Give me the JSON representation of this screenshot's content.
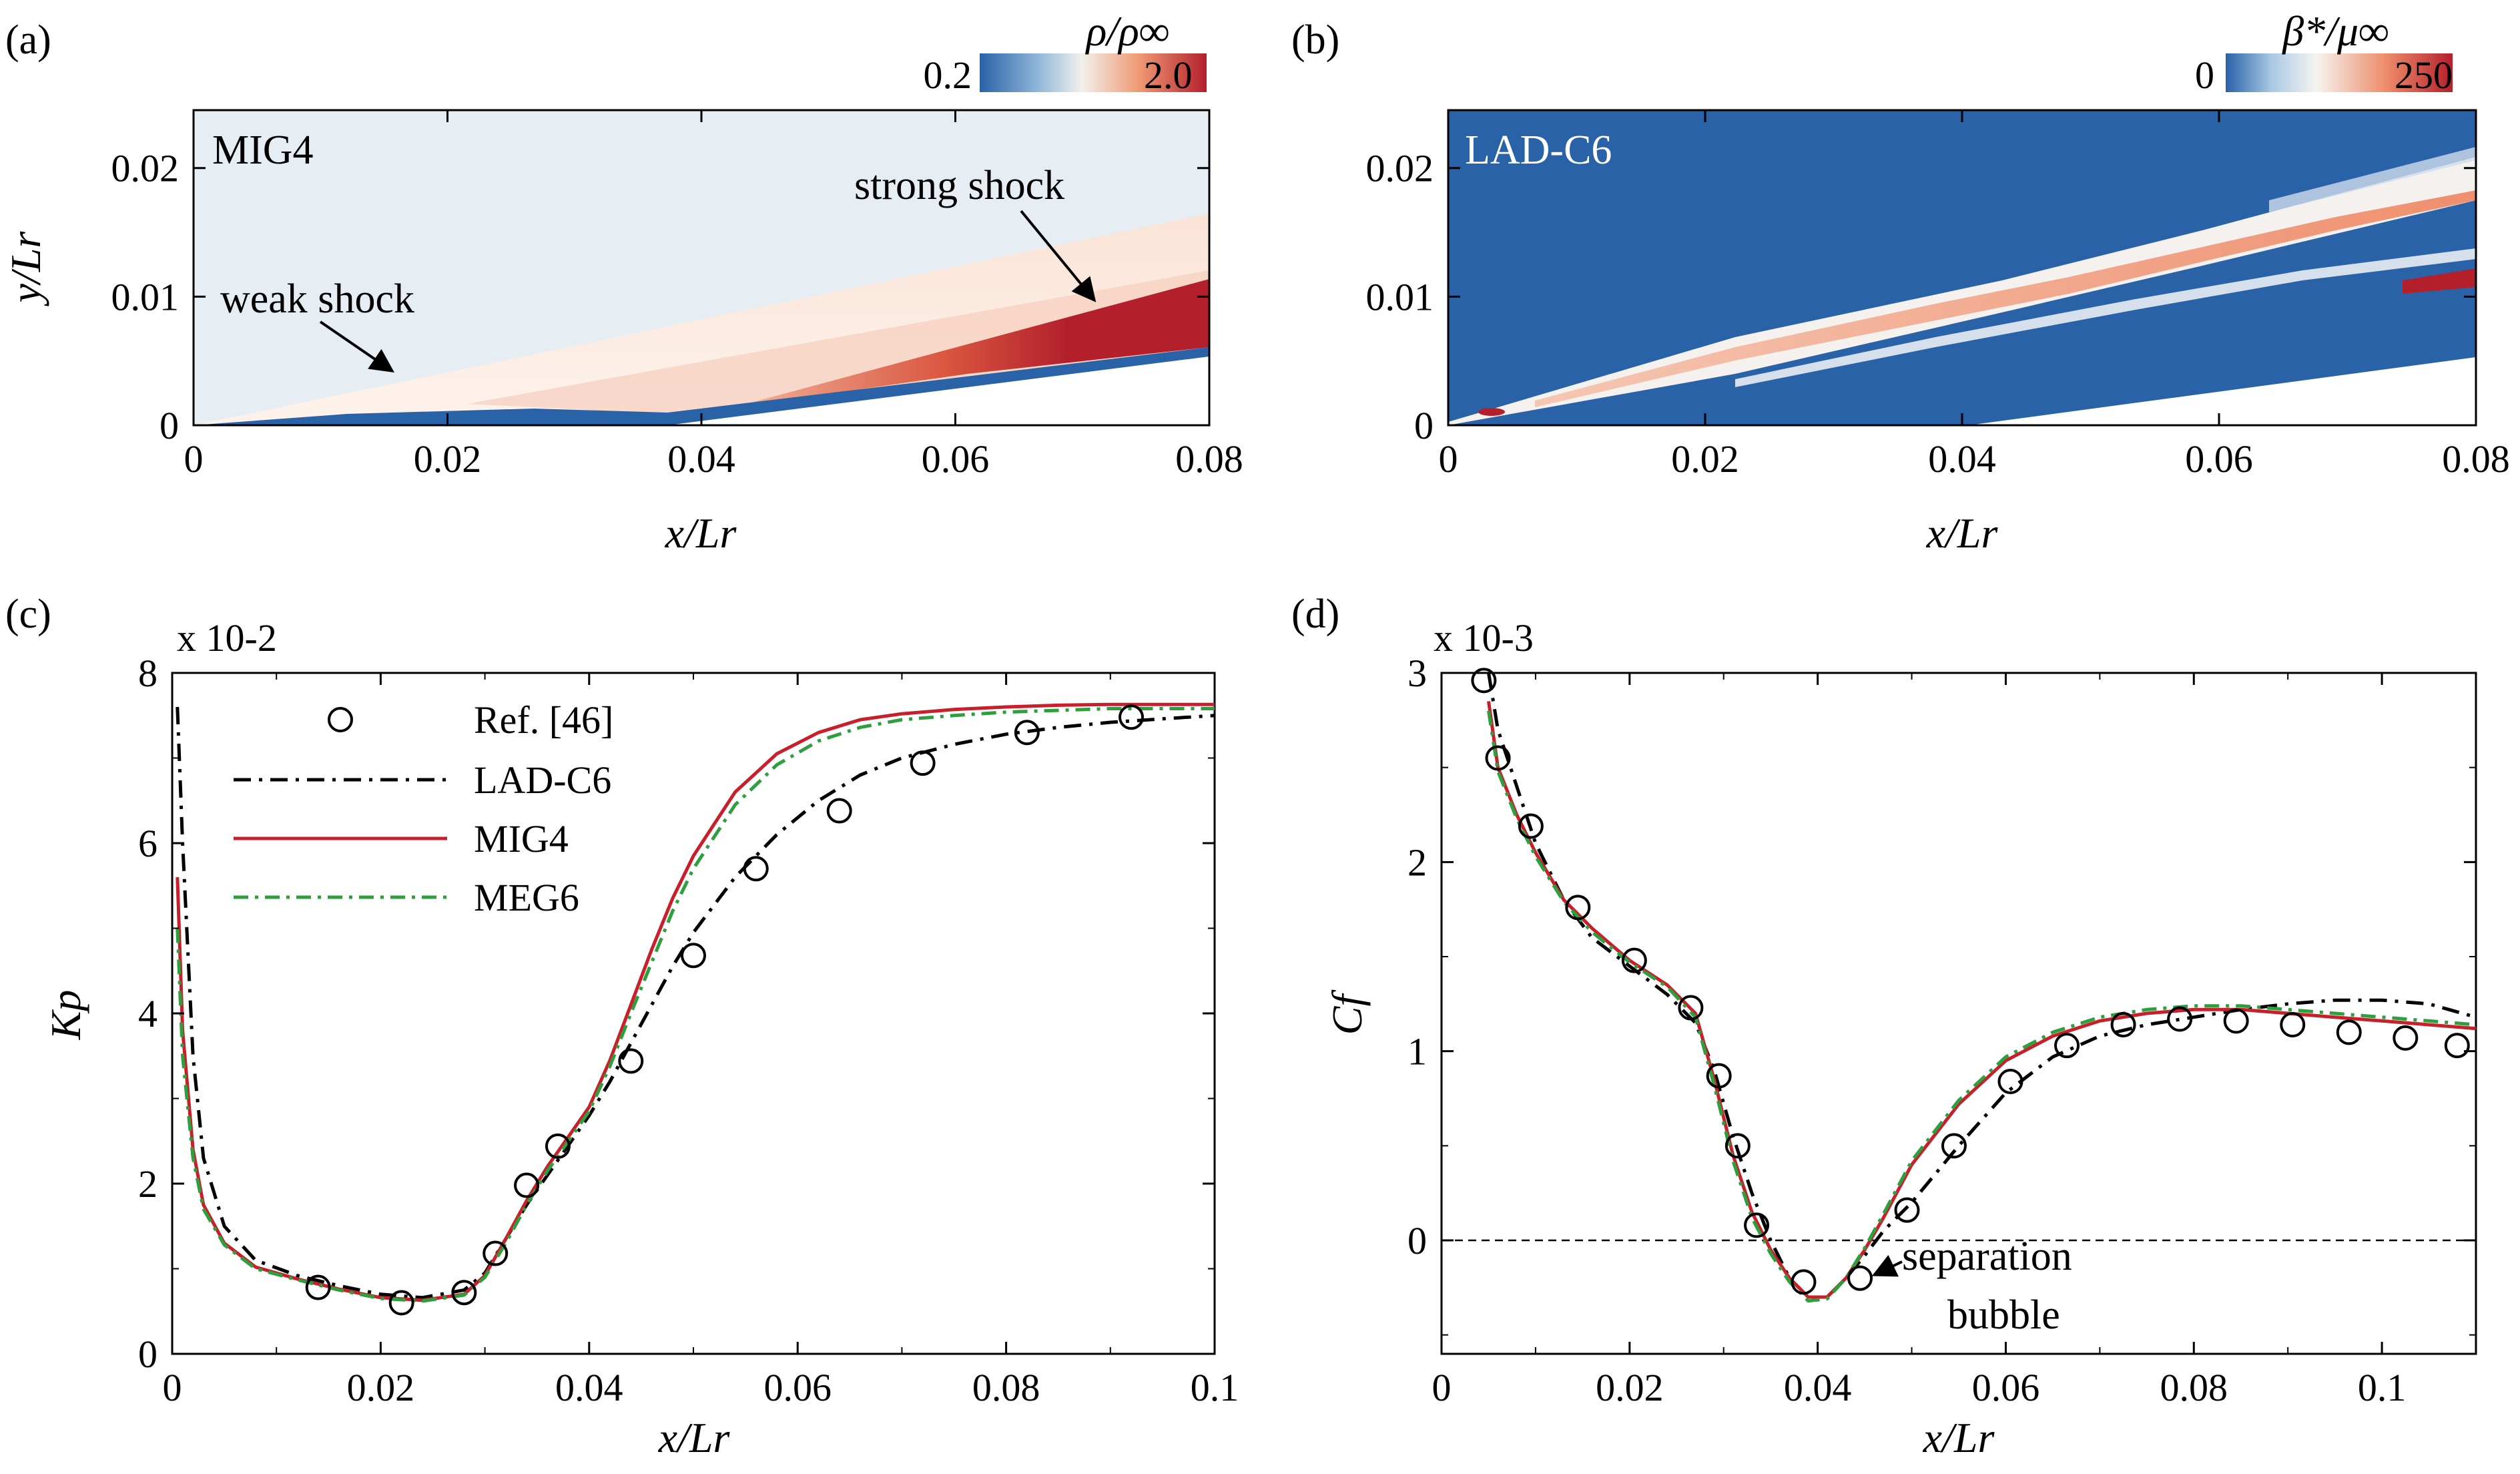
{
  "panels": {
    "a": {
      "label": "(a)",
      "tag": "MIG4",
      "colorbar": {
        "title": "ρ/ρ∞",
        "min": "0.2",
        "max": "2.0"
      },
      "xlabel": "x/Lr",
      "ylabel": "y/Lr",
      "xticks": [
        "0",
        "0.02",
        "0.04",
        "0.06",
        "0.08"
      ],
      "yticks": [
        "0",
        "0.01",
        "0.02"
      ],
      "annotations": {
        "weak": "weak shock",
        "strong": "strong shock"
      }
    },
    "b": {
      "label": "(b)",
      "tag": "LAD-C6",
      "colorbar": {
        "title": "β*/μ∞",
        "min": "0",
        "max": "250"
      },
      "xlabel": "x/Lr",
      "ylabel": "",
      "xticks": [
        "0",
        "0.02",
        "0.04",
        "0.06",
        "0.08"
      ],
      "yticks": [
        "0",
        "0.01",
        "0.02"
      ]
    },
    "c": {
      "label": "(c)",
      "multiplier": "x 10-2",
      "xlabel": "x/Lr",
      "ylabel": "Kp",
      "xticks": [
        "0",
        "0.02",
        "0.04",
        "0.06",
        "0.08",
        "0.1"
      ],
      "yticks": [
        "0",
        "2",
        "4",
        "6",
        "8"
      ],
      "legend": [
        "Ref. [46]",
        "LAD-C6",
        "MIG4",
        "MEG6"
      ]
    },
    "d": {
      "label": "(d)",
      "multiplier": "x 10-3",
      "xlabel": "x/Lr",
      "ylabel": "Cf",
      "xticks": [
        "0",
        "0.02",
        "0.04",
        "0.06",
        "0.08",
        "0.1"
      ],
      "yticks": [
        "0",
        "1",
        "2",
        "3"
      ],
      "annotations": {
        "sep1": "separation",
        "sep2": "bubble"
      }
    }
  },
  "colors": {
    "ref": "#000000",
    "lad": "#000000",
    "mig": "#c8202a",
    "meg": "#2e9e3e",
    "field_bg": "#e6edf3",
    "blue": "#2a62a8",
    "red": "#b3202c"
  },
  "chart_data": [
    {
      "panel": "c",
      "type": "line",
      "xlim": [
        0,
        0.1
      ],
      "ylim": [
        0,
        8
      ],
      "xlabel": "x/Lr",
      "ylabel": "Kp",
      "series": [
        {
          "name": "Ref. [46]",
          "style": "markers",
          "x": [
            0.014,
            0.022,
            0.028,
            0.031,
            0.034,
            0.037,
            0.044,
            0.05,
            0.056,
            0.064,
            0.072,
            0.082,
            0.092
          ],
          "y": [
            0.78,
            0.6,
            0.72,
            1.18,
            1.98,
            2.44,
            3.44,
            4.68,
            5.7,
            6.38,
            6.94,
            7.3,
            7.48
          ]
        },
        {
          "name": "LAD-C6",
          "style": "dashdot",
          "x": [
            0.0005,
            0.001,
            0.002,
            0.003,
            0.005,
            0.008,
            0.012,
            0.016,
            0.02,
            0.024,
            0.028,
            0.03,
            0.032,
            0.034,
            0.036,
            0.038,
            0.04,
            0.042,
            0.044,
            0.046,
            0.048,
            0.05,
            0.054,
            0.058,
            0.062,
            0.066,
            0.07,
            0.075,
            0.08,
            0.085,
            0.09,
            0.095,
            0.1
          ],
          "y": [
            7.6,
            6.0,
            3.5,
            2.3,
            1.5,
            1.1,
            0.92,
            0.8,
            0.7,
            0.66,
            0.75,
            0.95,
            1.35,
            1.75,
            2.1,
            2.45,
            2.8,
            3.2,
            3.65,
            4.1,
            4.55,
            4.95,
            5.6,
            6.1,
            6.5,
            6.8,
            7.0,
            7.16,
            7.28,
            7.36,
            7.42,
            7.46,
            7.5
          ]
        },
        {
          "name": "MIG4",
          "style": "solid",
          "x": [
            0.0005,
            0.001,
            0.002,
            0.003,
            0.005,
            0.008,
            0.012,
            0.016,
            0.02,
            0.024,
            0.028,
            0.03,
            0.032,
            0.034,
            0.036,
            0.038,
            0.04,
            0.042,
            0.044,
            0.046,
            0.048,
            0.05,
            0.054,
            0.058,
            0.062,
            0.066,
            0.07,
            0.075,
            0.08,
            0.085,
            0.09,
            0.095,
            0.1
          ],
          "y": [
            5.6,
            3.8,
            2.4,
            1.75,
            1.3,
            1.02,
            0.88,
            0.76,
            0.66,
            0.63,
            0.7,
            0.92,
            1.35,
            1.8,
            2.2,
            2.55,
            2.9,
            3.45,
            4.1,
            4.75,
            5.35,
            5.85,
            6.6,
            7.05,
            7.3,
            7.45,
            7.52,
            7.57,
            7.6,
            7.62,
            7.63,
            7.63,
            7.63
          ]
        },
        {
          "name": "MEG6",
          "style": "dashdot",
          "x": [
            0.0005,
            0.001,
            0.002,
            0.003,
            0.005,
            0.008,
            0.012,
            0.016,
            0.02,
            0.024,
            0.028,
            0.03,
            0.032,
            0.034,
            0.036,
            0.038,
            0.04,
            0.042,
            0.044,
            0.046,
            0.048,
            0.05,
            0.054,
            0.058,
            0.062,
            0.066,
            0.07,
            0.075,
            0.08,
            0.085,
            0.09,
            0.095,
            0.1
          ],
          "y": [
            5.0,
            3.5,
            2.3,
            1.7,
            1.28,
            1.0,
            0.87,
            0.75,
            0.65,
            0.62,
            0.69,
            0.9,
            1.3,
            1.75,
            2.15,
            2.5,
            2.85,
            3.38,
            4.0,
            4.6,
            5.2,
            5.7,
            6.45,
            6.92,
            7.2,
            7.36,
            7.45,
            7.5,
            7.54,
            7.56,
            7.58,
            7.58,
            7.58
          ]
        }
      ]
    },
    {
      "panel": "d",
      "type": "line",
      "xlim": [
        0,
        0.11
      ],
      "ylim": [
        -0.6,
        3
      ],
      "xlabel": "x/Lr",
      "ylabel": "Cf",
      "series": [
        {
          "name": "Ref. [46]",
          "style": "markers",
          "x": [
            0.0045,
            0.006,
            0.0095,
            0.0145,
            0.0205,
            0.0265,
            0.0295,
            0.0315,
            0.0335,
            0.0385,
            0.0445,
            0.0495,
            0.0545,
            0.0605,
            0.0665,
            0.0725,
            0.0785,
            0.0845,
            0.0905,
            0.0965,
            0.1025,
            0.108
          ],
          "y": [
            2.96,
            2.55,
            2.19,
            1.76,
            1.48,
            1.23,
            0.87,
            0.5,
            0.08,
            -0.22,
            -0.2,
            0.16,
            0.5,
            0.84,
            1.03,
            1.14,
            1.17,
            1.16,
            1.14,
            1.1,
            1.07,
            1.03
          ]
        },
        {
          "name": "LAD-C6",
          "style": "dashdot",
          "x": [
            0.005,
            0.006,
            0.008,
            0.01,
            0.013,
            0.016,
            0.02,
            0.024,
            0.027,
            0.029,
            0.031,
            0.033,
            0.035,
            0.037,
            0.039,
            0.041,
            0.043,
            0.045,
            0.047,
            0.05,
            0.055,
            0.06,
            0.065,
            0.07,
            0.075,
            0.08,
            0.085,
            0.09,
            0.095,
            0.1,
            0.105,
            0.11
          ],
          "y": [
            3.0,
            2.7,
            2.4,
            2.1,
            1.8,
            1.6,
            1.45,
            1.3,
            1.15,
            0.9,
            0.55,
            0.25,
            0.0,
            -0.2,
            -0.3,
            -0.3,
            -0.2,
            -0.08,
            0.05,
            0.2,
            0.5,
            0.78,
            0.97,
            1.08,
            1.14,
            1.18,
            1.22,
            1.25,
            1.27,
            1.27,
            1.25,
            1.18
          ]
        },
        {
          "name": "MIG4",
          "style": "solid",
          "x": [
            0.005,
            0.006,
            0.008,
            0.01,
            0.013,
            0.016,
            0.02,
            0.024,
            0.027,
            0.029,
            0.031,
            0.033,
            0.035,
            0.037,
            0.039,
            0.041,
            0.043,
            0.045,
            0.047,
            0.05,
            0.055,
            0.06,
            0.065,
            0.07,
            0.075,
            0.08,
            0.085,
            0.09,
            0.095,
            0.1,
            0.105,
            0.11
          ],
          "y": [
            2.85,
            2.5,
            2.25,
            2.05,
            1.8,
            1.65,
            1.48,
            1.35,
            1.2,
            0.85,
            0.45,
            0.15,
            -0.05,
            -0.2,
            -0.3,
            -0.3,
            -0.2,
            -0.05,
            0.12,
            0.4,
            0.72,
            0.95,
            1.08,
            1.16,
            1.2,
            1.22,
            1.22,
            1.2,
            1.18,
            1.16,
            1.14,
            1.12
          ]
        },
        {
          "name": "MEG6",
          "style": "dashdot",
          "x": [
            0.005,
            0.006,
            0.008,
            0.01,
            0.013,
            0.016,
            0.02,
            0.024,
            0.027,
            0.029,
            0.031,
            0.033,
            0.035,
            0.037,
            0.039,
            0.041,
            0.043,
            0.045,
            0.047,
            0.05,
            0.055,
            0.06,
            0.065,
            0.07,
            0.075,
            0.08,
            0.085,
            0.09,
            0.095,
            0.1,
            0.105,
            0.11
          ],
          "y": [
            2.8,
            2.48,
            2.23,
            2.03,
            1.79,
            1.63,
            1.47,
            1.34,
            1.18,
            0.82,
            0.42,
            0.12,
            -0.07,
            -0.22,
            -0.32,
            -0.31,
            -0.2,
            -0.04,
            0.14,
            0.42,
            0.74,
            0.97,
            1.1,
            1.18,
            1.22,
            1.24,
            1.24,
            1.22,
            1.2,
            1.18,
            1.16,
            1.14
          ]
        }
      ]
    }
  ]
}
